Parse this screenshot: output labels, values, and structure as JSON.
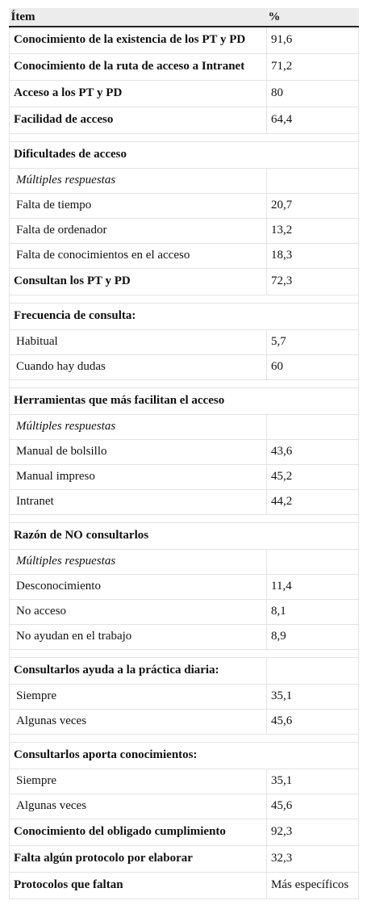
{
  "header": {
    "item": "Ítem",
    "pct": "%"
  },
  "rows": [
    {
      "kind": "bold",
      "label": "Conocimiento de la existencia de los PT y PD",
      "value": "91,6"
    },
    {
      "kind": "bold",
      "label": "Conocimiento de la ruta de acceso a Intranet",
      "value": "71,2"
    },
    {
      "kind": "bold",
      "label": "Acceso a los PT y PD",
      "value": "80"
    },
    {
      "kind": "bold",
      "label": "Facilidad de acceso",
      "value": "64,4"
    },
    {
      "kind": "spacer"
    },
    {
      "kind": "section",
      "label": "Dificultades de acceso"
    },
    {
      "kind": "italic",
      "label": "Múltiples respuestas",
      "value": ""
    },
    {
      "kind": "sub",
      "label": "Falta de tiempo",
      "value": "20,7"
    },
    {
      "kind": "sub",
      "label": "Falta de ordenador",
      "value": "13,2"
    },
    {
      "kind": "sub",
      "label": "Falta de conocimientos en el acceso",
      "value": "18,3"
    },
    {
      "kind": "bold",
      "label": "Consultan los PT y PD",
      "value": "72,3"
    },
    {
      "kind": "spacer"
    },
    {
      "kind": "section",
      "label": "Frecuencia de consulta:"
    },
    {
      "kind": "sub",
      "label": "Habitual",
      "value": "5,7"
    },
    {
      "kind": "sub",
      "label": "Cuando hay dudas",
      "value": "60"
    },
    {
      "kind": "spacer"
    },
    {
      "kind": "section",
      "label": "Herramientas que más facilitan el acceso"
    },
    {
      "kind": "italic",
      "label": "Múltiples respuestas",
      "value": ""
    },
    {
      "kind": "sub",
      "label": "Manual de bolsillo",
      "value": "43,6"
    },
    {
      "kind": "sub",
      "label": "Manual impreso",
      "value": "45,2"
    },
    {
      "kind": "sub",
      "label": "Intranet",
      "value": "44,2"
    },
    {
      "kind": "spacer"
    },
    {
      "kind": "section",
      "label": "Razón de NO consultarlos"
    },
    {
      "kind": "italic",
      "label": "Múltiples respuestas",
      "value": ""
    },
    {
      "kind": "sub",
      "label": "Desconocimiento",
      "value": "11,4"
    },
    {
      "kind": "sub",
      "label": "No acceso",
      "value": "8,1"
    },
    {
      "kind": "sub",
      "label": "No ayudan en el trabajo",
      "value": "8,9"
    },
    {
      "kind": "spacer"
    },
    {
      "kind": "section2",
      "label": "Consultarlos ayuda a la práctica diaria:",
      "value": ""
    },
    {
      "kind": "sub",
      "label": "Siempre",
      "value": "35,1"
    },
    {
      "kind": "sub",
      "label": "Algunas veces",
      "value": "45,6"
    },
    {
      "kind": "spacer"
    },
    {
      "kind": "section",
      "label": "Consultarlos aporta conocimientos:"
    },
    {
      "kind": "sub",
      "label": "Siempre",
      "value": "35,1"
    },
    {
      "kind": "sub",
      "label": "Algunas veces",
      "value": "45,6"
    },
    {
      "kind": "bold",
      "label": "Conocimiento del obligado cumplimiento",
      "value": "92,3"
    },
    {
      "kind": "bold",
      "label": "Falta algún protocolo por elaborar",
      "value": "32,3"
    },
    {
      "kind": "bold",
      "label": "Protocolos que faltan",
      "value": "Más específicos"
    }
  ]
}
